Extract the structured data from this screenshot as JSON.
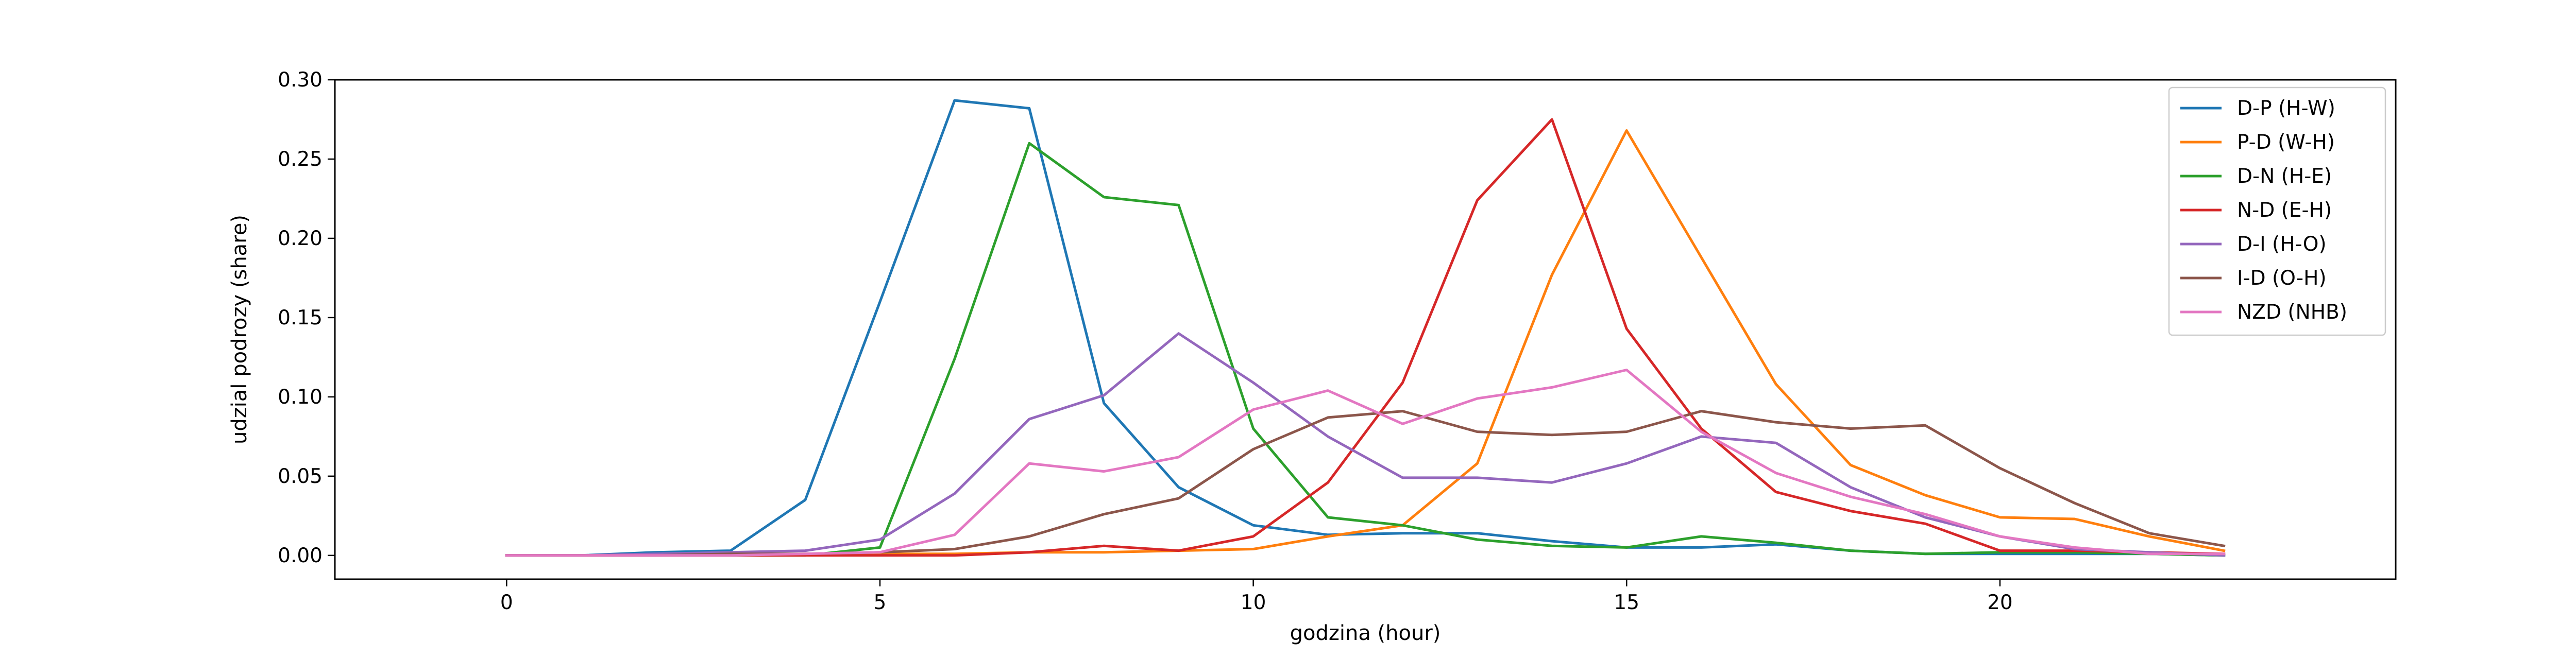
{
  "chart_data": {
    "type": "line",
    "title": "",
    "xlabel": "godzina (hour)",
    "ylabel": "udzial podrozy (share)",
    "x": [
      0,
      1,
      2,
      3,
      4,
      5,
      6,
      7,
      8,
      9,
      10,
      11,
      12,
      13,
      14,
      15,
      16,
      17,
      18,
      19,
      20,
      21,
      22,
      23
    ],
    "xlim": [
      -2.3,
      25.3
    ],
    "ylim": [
      -0.015,
      0.3
    ],
    "xticks": [
      0,
      5,
      10,
      15,
      20
    ],
    "xtick_labels": [
      "0",
      "5",
      "10",
      "15",
      "20"
    ],
    "yticks": [
      0.0,
      0.05,
      0.1,
      0.15,
      0.2,
      0.25,
      0.3
    ],
    "ytick_labels": [
      "0.00",
      "0.05",
      "0.10",
      "0.15",
      "0.20",
      "0.25",
      "0.30"
    ],
    "grid": false,
    "legend_position": "upper right",
    "series": [
      {
        "name": "D-P (H-W)",
        "color": "#1f77b4",
        "values": [
          0.0,
          0.0,
          0.002,
          0.003,
          0.035,
          0.16,
          0.287,
          0.282,
          0.096,
          0.043,
          0.019,
          0.013,
          0.014,
          0.014,
          0.009,
          0.005,
          0.005,
          0.007,
          0.003,
          0.001,
          0.001,
          0.001,
          0.001,
          0.0
        ]
      },
      {
        "name": "P-D (W-H)",
        "color": "#ff7f0e",
        "values": [
          0.0,
          0.0,
          0.0,
          0.0,
          0.001,
          0.001,
          0.001,
          0.002,
          0.002,
          0.003,
          0.004,
          0.012,
          0.019,
          0.058,
          0.177,
          0.268,
          0.188,
          0.108,
          0.057,
          0.038,
          0.024,
          0.023,
          0.012,
          0.003
        ]
      },
      {
        "name": "D-N (H-E)",
        "color": "#2ca02c",
        "values": [
          0.0,
          0.0,
          0.0,
          0.0,
          0.0,
          0.005,
          0.124,
          0.26,
          0.226,
          0.221,
          0.08,
          0.024,
          0.019,
          0.01,
          0.006,
          0.005,
          0.012,
          0.008,
          0.003,
          0.001,
          0.002,
          0.002,
          0.001,
          0.0
        ]
      },
      {
        "name": "N-D (E-H)",
        "color": "#d62728",
        "values": [
          0.0,
          0.0,
          0.0,
          0.0,
          0.0,
          0.0,
          0.0,
          0.002,
          0.006,
          0.003,
          0.012,
          0.046,
          0.109,
          0.224,
          0.275,
          0.143,
          0.08,
          0.04,
          0.028,
          0.02,
          0.003,
          0.003,
          0.002,
          0.001
        ]
      },
      {
        "name": "D-I (H-O)",
        "color": "#9467bd",
        "values": [
          0.0,
          0.0,
          0.001,
          0.002,
          0.003,
          0.01,
          0.039,
          0.086,
          0.101,
          0.14,
          0.109,
          0.075,
          0.049,
          0.049,
          0.046,
          0.058,
          0.075,
          0.071,
          0.043,
          0.024,
          0.012,
          0.004,
          0.002,
          0.0
        ]
      },
      {
        "name": "I-D (O-H)",
        "color": "#8c564b",
        "values": [
          0.0,
          0.0,
          0.0,
          0.001,
          0.001,
          0.002,
          0.004,
          0.012,
          0.026,
          0.036,
          0.067,
          0.087,
          0.091,
          0.078,
          0.076,
          0.078,
          0.091,
          0.084,
          0.08,
          0.082,
          0.055,
          0.033,
          0.014,
          0.006
        ]
      },
      {
        "name": "NZD (NHB)",
        "color": "#e377c2",
        "values": [
          0.0,
          0.0,
          0.0,
          0.0,
          0.001,
          0.002,
          0.013,
          0.058,
          0.053,
          0.062,
          0.092,
          0.104,
          0.083,
          0.099,
          0.106,
          0.117,
          0.078,
          0.052,
          0.037,
          0.026,
          0.012,
          0.005,
          0.001,
          0.001
        ]
      }
    ]
  }
}
